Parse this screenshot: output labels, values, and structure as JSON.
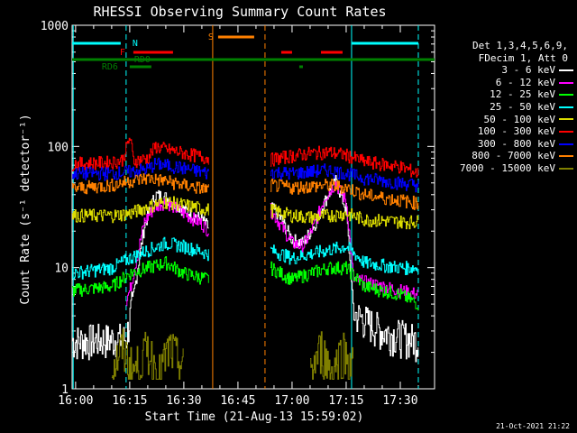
{
  "chart_data": {
    "type": "line",
    "title": "RHESSI Observing Summary Count Rates",
    "xlabel": "Start Time (21-Aug-13 15:59:02)",
    "ylabel": "Count Rate (s⁻¹ detector⁻¹)",
    "x_start": "2013-08-21 15:59:02",
    "xlim": [
      "15:59:02",
      "17:39:30"
    ],
    "x_ticks": [
      "16:00",
      "16:15",
      "16:30",
      "16:45",
      "17:00",
      "17:15",
      "17:30"
    ],
    "ylim": [
      1,
      1000
    ],
    "y_scale": "log",
    "y_ticks": [
      "1",
      "10",
      "100",
      "1000"
    ],
    "legend_header": [
      "Det 1,3,4,5,6,9,",
      "FDecim 1, Att 0"
    ],
    "data_gap": [
      "16:38:30",
      "16:52:30"
    ],
    "series": [
      {
        "name": "3 - 6 keV",
        "color": "#ffffff",
        "points": [
          [
            "15:59",
            "2.5"
          ],
          [
            "16:14",
            "2.6"
          ],
          [
            "16:15",
            "3.8"
          ],
          [
            "16:19",
            "22"
          ],
          [
            "16:22",
            "40"
          ],
          [
            "16:25",
            "38"
          ],
          [
            "16:30",
            "30"
          ],
          [
            "16:35",
            "25"
          ],
          [
            "16:37",
            "21"
          ],
          [
            "16:54",
            "32"
          ],
          [
            "16:57",
            "25"
          ],
          [
            "17:00",
            "17"
          ],
          [
            "17:03",
            "16"
          ],
          [
            "17:06",
            "22"
          ],
          [
            "17:09",
            "35"
          ],
          [
            "17:12",
            "52"
          ],
          [
            "17:15",
            "30"
          ],
          [
            "17:17",
            "4.2"
          ],
          [
            "17:25",
            "3.0"
          ],
          [
            "17:35",
            "2.5"
          ]
        ]
      },
      {
        "name": "6 - 12 keV",
        "color": "#ff00ff",
        "points": [
          [
            "16:14",
            "5.5"
          ],
          [
            "16:15",
            "6.5"
          ],
          [
            "16:19",
            "24"
          ],
          [
            "16:22",
            "32"
          ],
          [
            "16:25",
            "35"
          ],
          [
            "16:30",
            "28"
          ],
          [
            "16:35",
            "23"
          ],
          [
            "16:37",
            "20"
          ],
          [
            "16:54",
            "30"
          ],
          [
            "16:57",
            "22"
          ],
          [
            "17:00",
            "16"
          ],
          [
            "17:03",
            "15"
          ],
          [
            "17:06",
            "22"
          ],
          [
            "17:09",
            "38"
          ],
          [
            "17:12",
            "50"
          ],
          [
            "17:15",
            "35"
          ],
          [
            "17:17",
            "8"
          ],
          [
            "17:35",
            "6"
          ]
        ]
      },
      {
        "name": "12 - 25 keV",
        "color": "#00ff00",
        "points": [
          [
            "15:59",
            "6.5"
          ],
          [
            "16:10",
            "7"
          ],
          [
            "16:15",
            "9"
          ],
          [
            "16:20",
            "10"
          ],
          [
            "16:25",
            "11"
          ],
          [
            "16:30",
            "9"
          ],
          [
            "16:37",
            "8"
          ],
          [
            "16:54",
            "10"
          ],
          [
            "17:00",
            "8"
          ],
          [
            "17:05",
            "9"
          ],
          [
            "17:10",
            "10"
          ],
          [
            "17:15",
            "10"
          ],
          [
            "17:20",
            "7"
          ],
          [
            "17:30",
            "6"
          ],
          [
            "17:35",
            "5"
          ]
        ]
      },
      {
        "name": "25 - 50 keV",
        "color": "#00ffff",
        "points": [
          [
            "15:59",
            "9"
          ],
          [
            "16:10",
            "10"
          ],
          [
            "16:15",
            "12"
          ],
          [
            "16:20",
            "14"
          ],
          [
            "16:25",
            "16"
          ],
          [
            "16:30",
            "15"
          ],
          [
            "16:37",
            "13"
          ],
          [
            "16:54",
            "14"
          ],
          [
            "17:00",
            "12"
          ],
          [
            "17:05",
            "13"
          ],
          [
            "17:10",
            "14"
          ],
          [
            "17:15",
            "15"
          ],
          [
            "17:20",
            "11"
          ],
          [
            "17:30",
            "10"
          ],
          [
            "17:35",
            "10"
          ]
        ]
      },
      {
        "name": "50 - 100 keV",
        "color": "#dddd00",
        "points": [
          [
            "15:59",
            "27"
          ],
          [
            "16:10",
            "27"
          ],
          [
            "16:15",
            "28"
          ],
          [
            "16:20",
            "32"
          ],
          [
            "16:25",
            "35"
          ],
          [
            "16:30",
            "33"
          ],
          [
            "16:37",
            "30"
          ],
          [
            "16:54",
            "30"
          ],
          [
            "17:00",
            "27"
          ],
          [
            "17:05",
            "26"
          ],
          [
            "17:10",
            "27"
          ],
          [
            "17:15",
            "28"
          ],
          [
            "17:20",
            "25"
          ],
          [
            "17:30",
            "24"
          ],
          [
            "17:35",
            "24"
          ]
        ]
      },
      {
        "name": "100 - 300 keV",
        "color": "#ff0000",
        "points": [
          [
            "15:59",
            "72"
          ],
          [
            "16:10",
            "74"
          ],
          [
            "16:13",
            "78"
          ],
          [
            "16:15",
            "120"
          ],
          [
            "16:16",
            "76"
          ],
          [
            "16:20",
            "80"
          ],
          [
            "16:22",
            "100"
          ],
          [
            "16:25",
            "95"
          ],
          [
            "16:30",
            "88"
          ],
          [
            "16:37",
            "80"
          ],
          [
            "16:54",
            "78"
          ],
          [
            "17:00",
            "84"
          ],
          [
            "17:05",
            "88"
          ],
          [
            "17:10",
            "90"
          ],
          [
            "17:15",
            "85"
          ],
          [
            "17:20",
            "75"
          ],
          [
            "17:30",
            "68"
          ],
          [
            "17:35",
            "60"
          ]
        ]
      },
      {
        "name": "300 - 800 keV",
        "color": "#0000ff",
        "points": [
          [
            "15:59",
            "60"
          ],
          [
            "16:10",
            "60"
          ],
          [
            "16:15",
            "62"
          ],
          [
            "16:20",
            "65"
          ],
          [
            "16:22",
            "72"
          ],
          [
            "16:25",
            "70"
          ],
          [
            "16:30",
            "66"
          ],
          [
            "16:37",
            "60"
          ],
          [
            "16:54",
            "62"
          ],
          [
            "17:00",
            "60"
          ],
          [
            "17:05",
            "62"
          ],
          [
            "17:10",
            "64"
          ],
          [
            "17:15",
            "60"
          ],
          [
            "17:20",
            "55"
          ],
          [
            "17:30",
            "50"
          ],
          [
            "17:35",
            "48"
          ]
        ]
      },
      {
        "name": "800 - 7000 keV",
        "color": "#ff8000",
        "points": [
          [
            "15:59",
            "45"
          ],
          [
            "16:10",
            "48"
          ],
          [
            "16:15",
            "52"
          ],
          [
            "16:20",
            "55"
          ],
          [
            "16:25",
            "52"
          ],
          [
            "16:30",
            "48"
          ],
          [
            "16:37",
            "44"
          ],
          [
            "16:54",
            "48"
          ],
          [
            "17:00",
            "46"
          ],
          [
            "17:05",
            "47"
          ],
          [
            "17:10",
            "48"
          ],
          [
            "17:15",
            "46"
          ],
          [
            "17:20",
            "40"
          ],
          [
            "17:30",
            "36"
          ],
          [
            "17:35",
            "34"
          ]
        ]
      },
      {
        "name": "7000 - 15000 keV",
        "color": "#808000",
        "points": [
          [
            "16:10",
            "1.5"
          ],
          [
            "16:13",
            "2.2"
          ],
          [
            "16:16",
            "1.4"
          ],
          [
            "16:20",
            "2.2"
          ],
          [
            "16:23",
            "1.3"
          ],
          [
            "16:26",
            "2.2"
          ],
          [
            "16:30",
            "1.5"
          ],
          [
            "17:05",
            "1.4"
          ],
          [
            "17:08",
            "2.2"
          ],
          [
            "17:11",
            "1.4"
          ],
          [
            "17:14",
            "2.2"
          ],
          [
            "17:17",
            "1.5"
          ]
        ]
      }
    ],
    "observing_flags": {
      "labels": [
        "N",
        "F",
        "RD0",
        "RD6",
        "S"
      ],
      "vlines_solid": [
        "15:59:20",
        "16:38:00",
        "17:16:30"
      ],
      "vlines_dashed": [
        "16:14:00",
        "16:52:30",
        "17:35:00"
      ]
    }
  },
  "stamp": "21-Oct-2021 21:22"
}
